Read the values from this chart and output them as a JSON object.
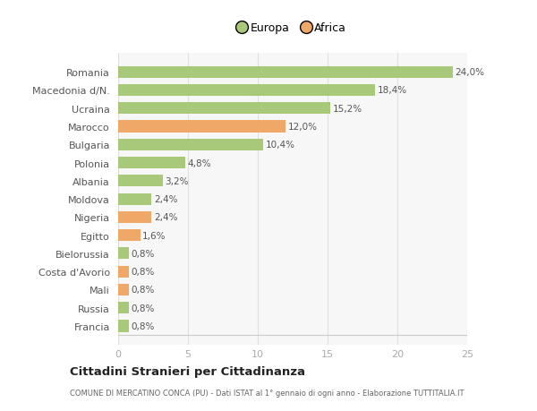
{
  "categories": [
    "Francia",
    "Russia",
    "Mali",
    "Costa d'Avorio",
    "Bielorussia",
    "Egitto",
    "Nigeria",
    "Moldova",
    "Albania",
    "Polonia",
    "Bulgaria",
    "Marocco",
    "Ucraina",
    "Macedonia d/N.",
    "Romania"
  ],
  "values": [
    0.8,
    0.8,
    0.8,
    0.8,
    0.8,
    1.6,
    2.4,
    2.4,
    3.2,
    4.8,
    10.4,
    12.0,
    15.2,
    18.4,
    24.0
  ],
  "colors": [
    "#a8c87a",
    "#a8c87a",
    "#f0a868",
    "#f0a868",
    "#a8c87a",
    "#f0a868",
    "#f0a868",
    "#a8c87a",
    "#a8c87a",
    "#a8c87a",
    "#a8c87a",
    "#f0a868",
    "#a8c87a",
    "#a8c87a",
    "#a8c87a"
  ],
  "labels": [
    "0,8%",
    "0,8%",
    "0,8%",
    "0,8%",
    "0,8%",
    "1,6%",
    "2,4%",
    "2,4%",
    "3,2%",
    "4,8%",
    "10,4%",
    "12,0%",
    "15,2%",
    "18,4%",
    "24,0%"
  ],
  "europa_color": "#a8c87a",
  "africa_color": "#f0a868",
  "title": "Cittadini Stranieri per Cittadinanza",
  "subtitle": "COMUNE DI MERCATINO CONCA (PU) - Dati ISTAT al 1° gennaio di ogni anno - Elaborazione TUTTITALIA.IT",
  "xlim": [
    0,
    25
  ],
  "xticks": [
    0,
    5,
    10,
    15,
    20,
    25
  ],
  "background_color": "#ffffff",
  "plot_bg_color": "#f7f7f7",
  "grid_color": "#e0e0e0"
}
